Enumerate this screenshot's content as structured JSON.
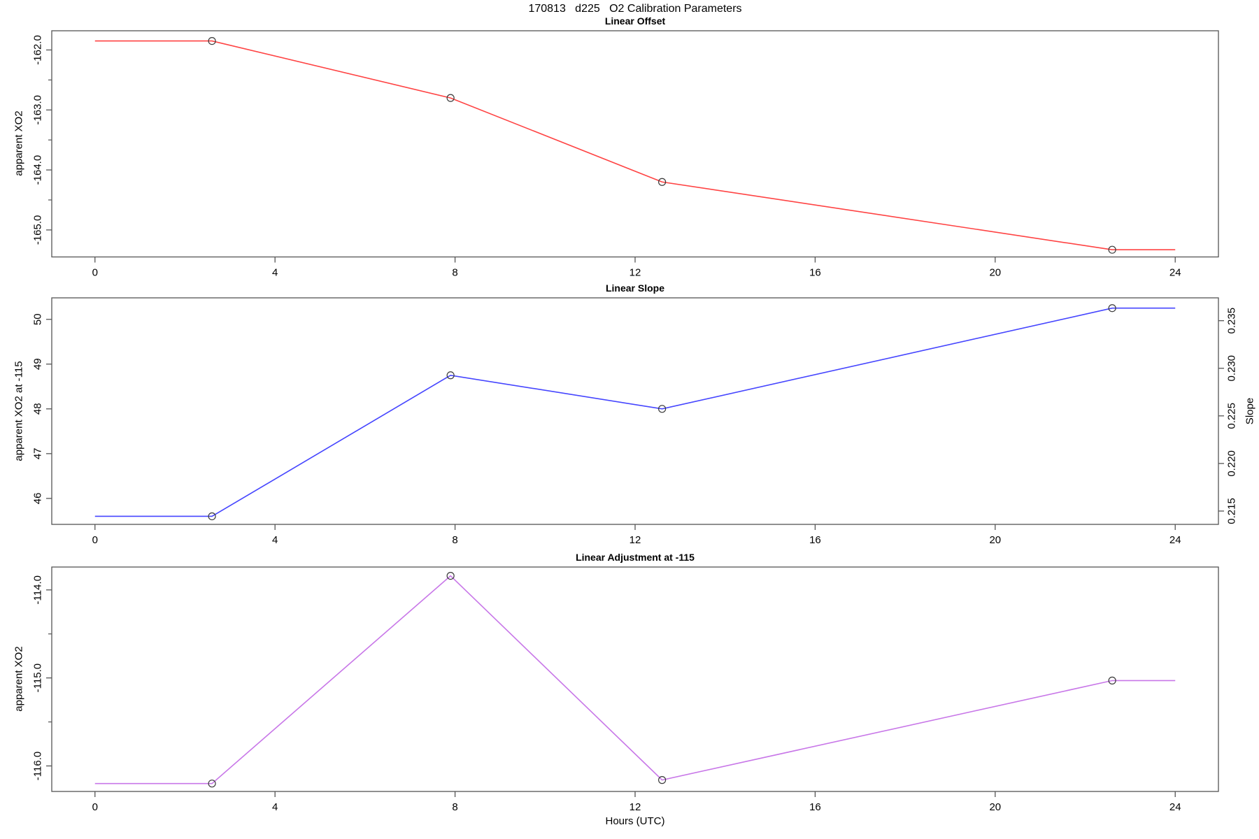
{
  "figure_title": "170813   d225   O2 Calibration Parameters",
  "x_axis": {
    "label": "Hours (UTC)",
    "ticks": [
      0,
      4,
      8,
      12,
      16,
      20,
      24
    ],
    "lim": [
      -0.96,
      24.96
    ]
  },
  "hours_utc_points": [
    2.6,
    7.9,
    12.6,
    22.6
  ],
  "colors": {
    "offset_line": "#ff4343",
    "slope_line": "#4545ff",
    "adjustment_line": "#c877e8",
    "marker": "#3a3a3a",
    "frame": "#555555",
    "text": "#000000"
  },
  "chart_data": [
    {
      "type": "line",
      "series_name": "linear-offset",
      "title": "Linear Offset",
      "ylabel": "apparent XO2",
      "xlabel": "",
      "color": "#ff4343",
      "marker": "open-circle",
      "x": [
        2.6,
        7.9,
        12.6,
        22.6
      ],
      "y": [
        -161.85,
        -162.8,
        -164.2,
        -165.33
      ],
      "extend_x": [
        0,
        24
      ],
      "ylim": [
        -165.45,
        -161.68
      ],
      "yticks": [
        -162.0,
        -163.0,
        -164.0,
        -165.0
      ],
      "minor_yticks": [
        -162.5,
        -163.5,
        -164.5
      ],
      "ytick_decimals": 1
    },
    {
      "type": "line",
      "series_name": "linear-slope",
      "title": "Linear Slope",
      "ylabel": "apparent XO2 at -115",
      "ylabel_right": "Slope",
      "xlabel": "",
      "color": "#4545ff",
      "marker": "open-circle",
      "x": [
        2.6,
        7.9,
        12.6,
        22.6
      ],
      "y": [
        45.6,
        48.75,
        48.0,
        50.25
      ],
      "extend_x": [
        0,
        24
      ],
      "ylim": [
        45.42,
        50.48
      ],
      "yticks": [
        46,
        47,
        48,
        49,
        50
      ],
      "minor_yticks": [],
      "ytick_decimals": 0,
      "right_axis": {
        "label": "Slope",
        "ylim": [
          0.2136,
          0.2374
        ],
        "yticks": [
          0.215,
          0.22,
          0.225,
          0.23,
          0.235
        ],
        "ytick_decimals": 3,
        "point_values": [
          0.2144,
          0.2293,
          0.2258,
          0.2364
        ]
      }
    },
    {
      "type": "line",
      "series_name": "linear-adjustment",
      "title": "Linear Adjustment at -115",
      "ylabel": "apparent XO2",
      "xlabel": "Hours (UTC)",
      "color": "#c877e8",
      "marker": "open-circle",
      "x": [
        2.6,
        7.9,
        12.6,
        22.6
      ],
      "y": [
        -116.2,
        -113.84,
        -116.16,
        -115.03
      ],
      "extend_x": [
        0,
        24
      ],
      "ylim": [
        -116.29,
        -113.74
      ],
      "yticks": [
        -114.0,
        -115.0,
        -116.0
      ],
      "minor_yticks": [
        -114.5,
        -115.5
      ],
      "ytick_decimals": 1
    }
  ]
}
